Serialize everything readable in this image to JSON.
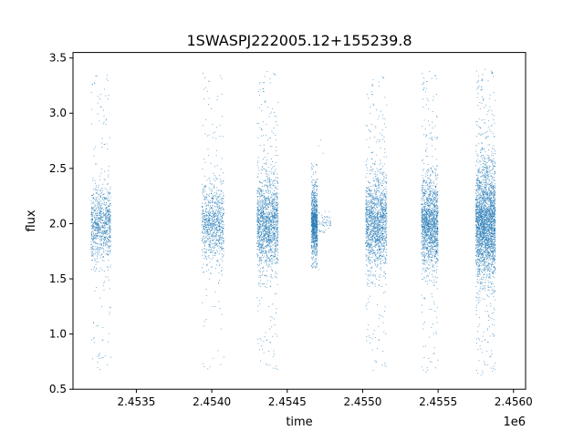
{
  "chart_data": {
    "type": "scatter",
    "title": "1SWASPJ222005.12+155239.8",
    "xlabel": "time",
    "ylabel": "flux",
    "x_offset_label": "1e6",
    "xlim": [
      2453080,
      2456080
    ],
    "ylim": [
      0.5,
      3.55
    ],
    "grid": false,
    "legend": "none",
    "x_ticks": [
      2453500,
      2454000,
      2454500,
      2455000,
      2455500,
      2456000
    ],
    "x_tick_labels": [
      "2.4535",
      "2.4540",
      "2.4545",
      "2.4550",
      "2.4555",
      "2.4560"
    ],
    "y_ticks": [
      0.5,
      1.0,
      1.5,
      2.0,
      2.5,
      3.0,
      3.5
    ],
    "y_tick_labels": [
      "0.5",
      "1.0",
      "1.5",
      "2.0",
      "2.5",
      "3.0",
      "3.5"
    ],
    "series": [
      {
        "color": "#1f77b4",
        "marker_size": "tiny",
        "clusters": [
          {
            "x_range": [
              2453200,
              2453330
            ],
            "median": 2.0,
            "core_range": [
              1.7,
              2.35
            ],
            "extent": [
              0.65,
              3.38
            ],
            "density": "medium"
          },
          {
            "x_range": [
              2453935,
              2454080
            ],
            "median": 2.0,
            "core_range": [
              1.65,
              2.35
            ],
            "extent": [
              0.68,
              3.38
            ],
            "density": "medium"
          },
          {
            "x_range": [
              2454300,
              2454440
            ],
            "median": 2.0,
            "core_range": [
              1.6,
              2.4
            ],
            "extent": [
              0.62,
              3.38
            ],
            "density": "high"
          },
          {
            "x_range": [
              2454660,
              2454700
            ],
            "median": 2.0,
            "core_range": [
              1.7,
              2.3
            ],
            "extent": [
              1.6,
              2.55
            ],
            "density": "medium"
          },
          {
            "x_range": [
              2454700,
              2454790
            ],
            "median": 2.0,
            "core_range": [
              1.9,
              2.1
            ],
            "extent": [
              0.8,
              2.9
            ],
            "density": "low"
          },
          {
            "x_range": [
              2455020,
              2455160
            ],
            "median": 2.0,
            "core_range": [
              1.6,
              2.4
            ],
            "extent": [
              0.65,
              3.35
            ],
            "density": "high"
          },
          {
            "x_range": [
              2455390,
              2455500
            ],
            "median": 2.0,
            "core_range": [
              1.6,
              2.4
            ],
            "extent": [
              0.65,
              3.38
            ],
            "density": "high"
          },
          {
            "x_range": [
              2455750,
              2455880
            ],
            "median": 2.0,
            "core_range": [
              1.5,
              2.5
            ],
            "extent": [
              0.62,
              3.4
            ],
            "density": "very-high"
          }
        ]
      }
    ]
  }
}
